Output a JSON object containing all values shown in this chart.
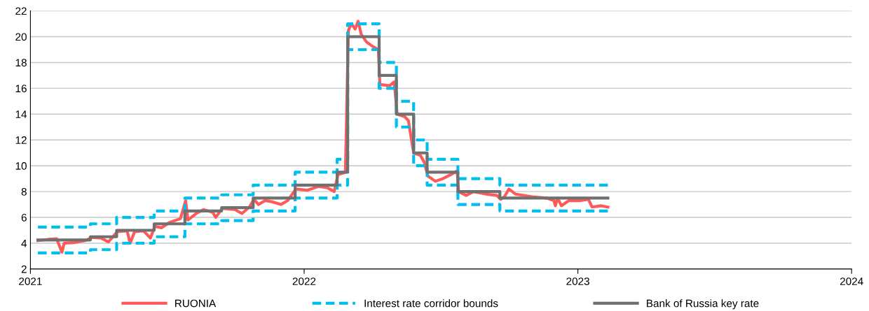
{
  "chart_data": {
    "type": "line",
    "xlim": [
      "2021-01-01",
      "2024-01-01"
    ],
    "xticks": [
      {
        "value": "2021-01-01",
        "label": "2021"
      },
      {
        "value": "2022-01-01",
        "label": "2022"
      },
      {
        "value": "2023-01-01",
        "label": "2023"
      },
      {
        "value": "2024-01-01",
        "label": "2024"
      }
    ],
    "ylim": [
      2,
      22
    ],
    "yticks": [
      2,
      4,
      6,
      8,
      10,
      12,
      14,
      16,
      18,
      20,
      22
    ],
    "grid": "y",
    "legend": "bottom",
    "series": [
      {
        "name": "RUONIA",
        "line_style": "solid",
        "color": "#ff5a5a",
        "x": [
          "2021-01-11",
          "2021-01-25",
          "2021-02-05",
          "2021-02-12",
          "2021-02-15",
          "2021-03-01",
          "2021-03-15",
          "2021-03-24",
          "2021-04-05",
          "2021-04-15",
          "2021-04-27",
          "2021-05-10",
          "2021-05-14",
          "2021-05-20",
          "2021-06-01",
          "2021-06-10",
          "2021-06-16",
          "2021-06-25",
          "2021-07-05",
          "2021-07-20",
          "2021-07-27",
          "2021-07-30",
          "2021-08-10",
          "2021-08-20",
          "2021-09-01",
          "2021-09-05",
          "2021-09-14",
          "2021-10-01",
          "2021-10-10",
          "2021-10-20",
          "2021-10-26",
          "2021-11-01",
          "2021-11-10",
          "2021-11-20",
          "2021-12-01",
          "2021-12-10",
          "2021-12-21",
          "2022-01-05",
          "2022-01-20",
          "2022-02-01",
          "2022-02-10",
          "2022-02-15",
          "2022-02-25",
          "2022-03-01",
          "2022-03-05",
          "2022-03-10",
          "2022-03-14",
          "2022-03-18",
          "2022-03-25",
          "2022-04-01",
          "2022-04-10",
          "2022-04-12",
          "2022-04-25",
          "2022-05-01",
          "2022-05-05",
          "2022-05-15",
          "2022-05-20",
          "2022-05-27",
          "2022-06-05",
          "2022-06-10",
          "2022-06-15",
          "2022-06-25",
          "2022-07-05",
          "2022-07-15",
          "2022-07-24",
          "2022-07-26",
          "2022-08-05",
          "2022-08-15",
          "2022-09-01",
          "2022-09-15",
          "2022-09-20",
          "2022-09-25",
          "2022-10-01",
          "2022-10-10",
          "2022-11-01",
          "2022-11-20",
          "2022-11-30",
          "2022-12-02",
          "2022-12-05",
          "2022-12-10",
          "2022-12-20",
          "2023-01-05",
          "2023-01-15",
          "2023-01-20",
          "2023-02-01",
          "2023-02-10"
        ],
        "values": [
          4.2,
          4.3,
          4.35,
          3.3,
          4.0,
          4.05,
          4.2,
          4.45,
          4.4,
          4.1,
          4.9,
          4.95,
          4.0,
          4.9,
          4.95,
          4.4,
          5.3,
          5.2,
          5.6,
          5.9,
          7.3,
          5.8,
          6.3,
          6.6,
          6.4,
          6.0,
          6.7,
          6.6,
          6.3,
          6.8,
          7.4,
          7.0,
          7.3,
          7.2,
          7.0,
          7.3,
          8.2,
          8.1,
          8.4,
          8.3,
          8.0,
          9.3,
          9.5,
          20.5,
          21.0,
          20.6,
          21.2,
          20.2,
          19.6,
          19.3,
          19.0,
          16.3,
          16.2,
          16.5,
          14.0,
          13.8,
          13.5,
          11.0,
          10.8,
          10.3,
          9.2,
          8.8,
          9.0,
          9.3,
          9.6,
          8.0,
          7.7,
          8.0,
          7.8,
          7.7,
          7.4,
          7.6,
          8.2,
          7.8,
          7.6,
          7.5,
          7.3,
          6.9,
          7.5,
          6.9,
          7.3,
          7.3,
          7.4,
          6.8,
          6.9,
          6.8
        ]
      },
      {
        "name": "Interest rate corridor bounds",
        "type": "step",
        "line_style": "dashed",
        "color": "#00bfef",
        "x": [
          "2021-01-11",
          "2021-03-22",
          "2021-04-26",
          "2021-06-15",
          "2021-07-26",
          "2021-09-13",
          "2021-10-25",
          "2021-12-20",
          "2022-02-14",
          "2022-02-28",
          "2022-04-11",
          "2022-05-04",
          "2022-05-27",
          "2022-06-14",
          "2022-07-25",
          "2022-09-19",
          "2023-02-10"
        ],
        "values": [
          5.25,
          5.5,
          6.0,
          6.5,
          7.5,
          7.75,
          8.5,
          9.5,
          10.5,
          21,
          18,
          15,
          12,
          10.5,
          9,
          8.5,
          8.5
        ]
      },
      {
        "type": "step",
        "line_style": "dashed",
        "color": "#00bfef",
        "x": [
          "2021-01-11",
          "2021-03-22",
          "2021-04-26",
          "2021-06-15",
          "2021-07-26",
          "2021-09-13",
          "2021-10-25",
          "2021-12-20",
          "2022-02-14",
          "2022-02-28",
          "2022-04-11",
          "2022-05-04",
          "2022-05-27",
          "2022-06-14",
          "2022-07-25",
          "2022-09-19",
          "2023-02-10"
        ],
        "values": [
          3.25,
          3.5,
          4.0,
          4.5,
          5.5,
          5.75,
          6.5,
          7.5,
          8.5,
          19,
          16,
          13,
          10,
          8.5,
          7,
          6.5,
          6.5
        ]
      },
      {
        "name": "Bank of Russia key rate",
        "type": "step",
        "line_style": "solid",
        "color": "#707070",
        "x": [
          "2021-01-11",
          "2021-03-22",
          "2021-04-26",
          "2021-06-15",
          "2021-07-26",
          "2021-09-13",
          "2021-10-25",
          "2021-12-20",
          "2022-02-14",
          "2022-02-28",
          "2022-04-11",
          "2022-05-04",
          "2022-05-27",
          "2022-06-14",
          "2022-07-25",
          "2022-09-19",
          "2023-02-10"
        ],
        "values": [
          4.25,
          4.5,
          5.0,
          5.5,
          6.5,
          6.75,
          7.5,
          8.5,
          9.5,
          20,
          17,
          14,
          11,
          9.5,
          8,
          7.5,
          7.5
        ]
      }
    ]
  }
}
